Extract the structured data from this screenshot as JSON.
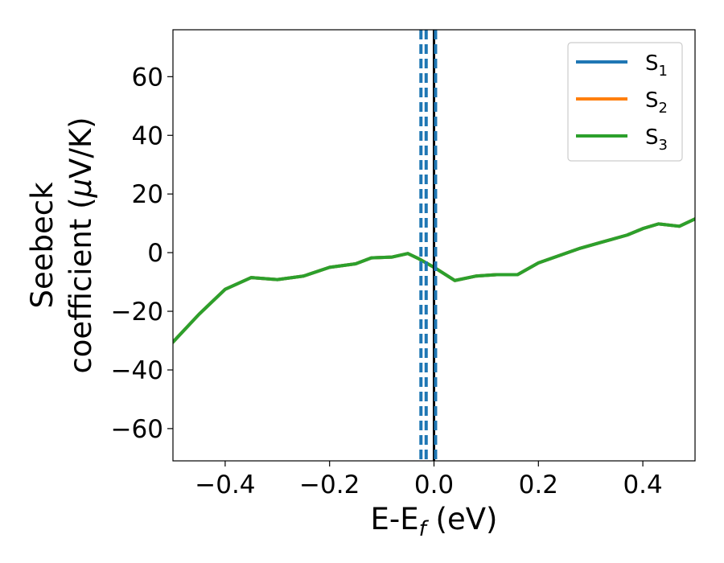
{
  "chart_data": {
    "type": "line",
    "xlabel": {
      "main": "E-E",
      "sub": "f",
      "unit": " (eV)"
    },
    "ylabel": {
      "line1": "Seebeck",
      "line2_prefix": "coefficient  (",
      "mu": "μ",
      "line2_suffix": "V/K)"
    },
    "xlim": [
      -0.5,
      0.5
    ],
    "ylim": [
      -71,
      76
    ],
    "xticks": [
      -0.4,
      -0.2,
      0.0,
      0.2,
      0.4
    ],
    "xtick_labels": [
      "−0.4",
      "−0.2",
      "0.0",
      "0.2",
      "0.4"
    ],
    "yticks": [
      -60,
      -40,
      -20,
      0,
      20,
      40,
      60
    ],
    "ytick_labels": [
      "−60",
      "−40",
      "−20",
      "0",
      "20",
      "40",
      "60"
    ],
    "grid": false,
    "legend_position": "top-right",
    "series": [
      {
        "name": "S",
        "sub": "1",
        "color": "#1f77b4",
        "x": [
          -0.5,
          -0.45,
          -0.4,
          -0.35,
          -0.3,
          -0.25,
          -0.2,
          -0.15,
          -0.12,
          -0.08,
          -0.05,
          -0.03,
          0.0,
          0.04,
          0.08,
          0.12,
          0.16,
          0.2,
          0.24,
          0.28,
          0.32,
          0.37,
          0.4,
          0.43,
          0.47,
          0.5
        ],
        "y": [
          -30.5,
          -21,
          -12.5,
          -8.5,
          -9.2,
          -8,
          -5,
          -3.8,
          -1.8,
          -1.5,
          -0.3,
          -2,
          -5,
          -9.5,
          -8,
          -7.5,
          -7.5,
          -3.5,
          -1,
          1.5,
          3.5,
          6,
          8.2,
          9.8,
          9,
          11.5
        ]
      },
      {
        "name": "S",
        "sub": "2",
        "color": "#ff7f0e",
        "x": [
          -0.5,
          -0.45,
          -0.4,
          -0.35,
          -0.3,
          -0.25,
          -0.2,
          -0.15,
          -0.12,
          -0.08,
          -0.05,
          -0.03,
          0.0,
          0.04,
          0.08,
          0.12,
          0.16,
          0.2,
          0.24,
          0.28,
          0.32,
          0.37,
          0.4,
          0.43,
          0.47,
          0.5
        ],
        "y": [
          -30.5,
          -21,
          -12.5,
          -8.5,
          -9.2,
          -8,
          -5,
          -3.8,
          -1.8,
          -1.5,
          -0.3,
          -2,
          -5,
          -9.5,
          -8,
          -7.5,
          -7.5,
          -3.5,
          -1,
          1.5,
          3.5,
          6,
          8.2,
          9.8,
          9,
          11.5
        ]
      },
      {
        "name": "S",
        "sub": "3",
        "color": "#2ca02c",
        "x": [
          -0.5,
          -0.45,
          -0.4,
          -0.35,
          -0.3,
          -0.25,
          -0.2,
          -0.15,
          -0.12,
          -0.08,
          -0.05,
          -0.03,
          0.0,
          0.04,
          0.08,
          0.12,
          0.16,
          0.2,
          0.24,
          0.28,
          0.32,
          0.37,
          0.4,
          0.43,
          0.47,
          0.5
        ],
        "y": [
          -30.5,
          -21,
          -12.5,
          -8.5,
          -9.2,
          -8,
          -5,
          -3.8,
          -1.8,
          -1.5,
          -0.3,
          -2,
          -5,
          -9.5,
          -8,
          -7.5,
          -7.5,
          -3.5,
          -1,
          1.5,
          3.5,
          6,
          8.2,
          9.8,
          9,
          11.5
        ]
      }
    ],
    "vertical_lines": [
      {
        "x": 0.0,
        "color": "#000000",
        "style": "solid"
      },
      {
        "x": -0.025,
        "color": "#1f77b4",
        "style": "dashed"
      },
      {
        "x": -0.015,
        "color": "#1f77b4",
        "style": "dashed"
      },
      {
        "x": 0.003,
        "color": "#1f77b4",
        "style": "dashed"
      }
    ]
  }
}
